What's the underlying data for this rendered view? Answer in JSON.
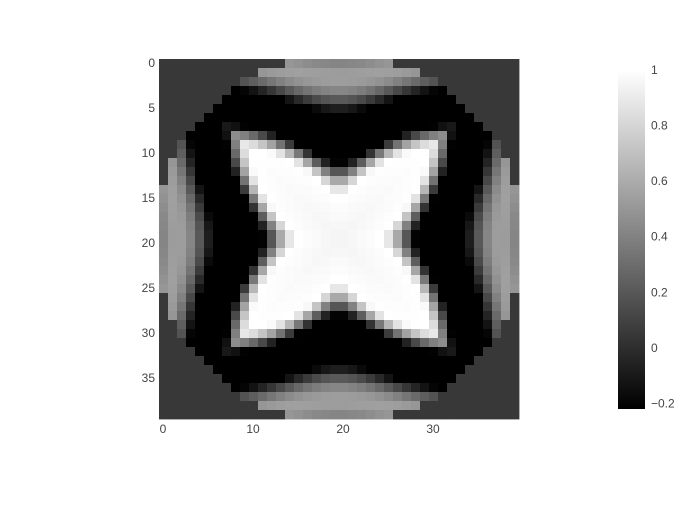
{
  "chart_data": {
    "type": "heatmap",
    "colorscale": "greys",
    "x": {
      "range": [
        0,
        39
      ],
      "ticks": [
        0,
        10,
        20,
        30
      ],
      "tick_labels": [
        "0",
        "10",
        "20",
        "30"
      ]
    },
    "y": {
      "range": [
        0,
        39
      ],
      "reversed": true,
      "ticks": [
        0,
        5,
        10,
        15,
        20,
        25,
        30,
        35
      ],
      "tick_labels": [
        "0",
        "5",
        "10",
        "15",
        "20",
        "25",
        "30",
        "35"
      ]
    },
    "z_range": [
      -0.22,
      1.0
    ],
    "outside_value": 0.05,
    "grid": false,
    "colorbar": {
      "placement": "right",
      "ticks": [
        -0.2,
        0,
        0.2,
        0.4,
        0.6,
        0.8,
        1
      ],
      "tick_labels": [
        "−0.2",
        "0",
        "0.2",
        "0.4",
        "0.6",
        "0.8",
        "1"
      ],
      "colors": [
        "#000000",
        "#ffffff"
      ]
    }
  }
}
